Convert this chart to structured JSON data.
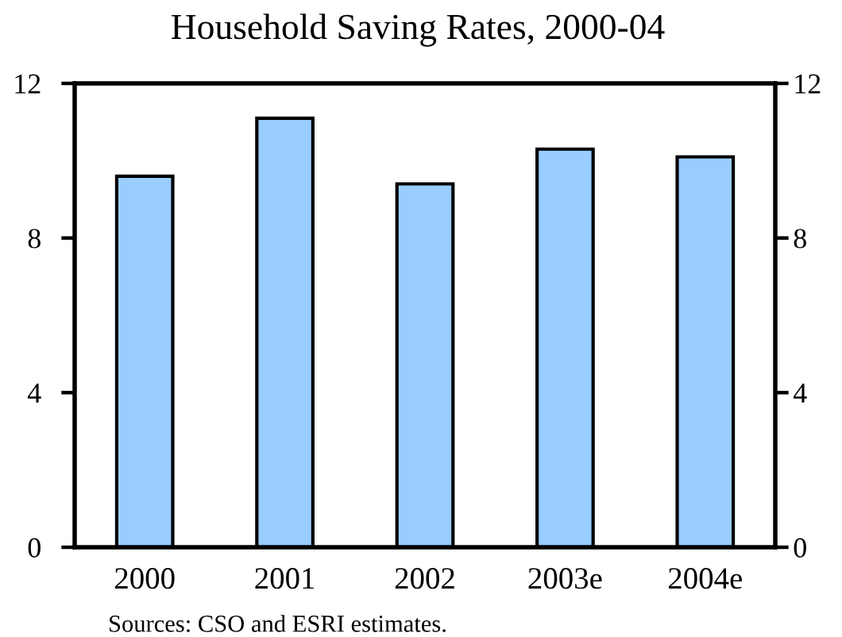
{
  "chart_data": {
    "type": "bar",
    "title": "Household Saving Rates, 2000-04",
    "categories": [
      "2000",
      "2001",
      "2002",
      "2003e",
      "2004e"
    ],
    "values": [
      9.6,
      11.1,
      9.4,
      10.3,
      10.1
    ],
    "color": "#99ccff",
    "ylim": [
      0,
      12
    ],
    "yticks": [
      0,
      4,
      8,
      12
    ],
    "y2lim": [
      0,
      12
    ],
    "y2ticks": [
      0,
      4,
      8,
      12
    ],
    "grid": false,
    "annotations": [
      "Sources: CSO and ESRI estimates."
    ]
  }
}
